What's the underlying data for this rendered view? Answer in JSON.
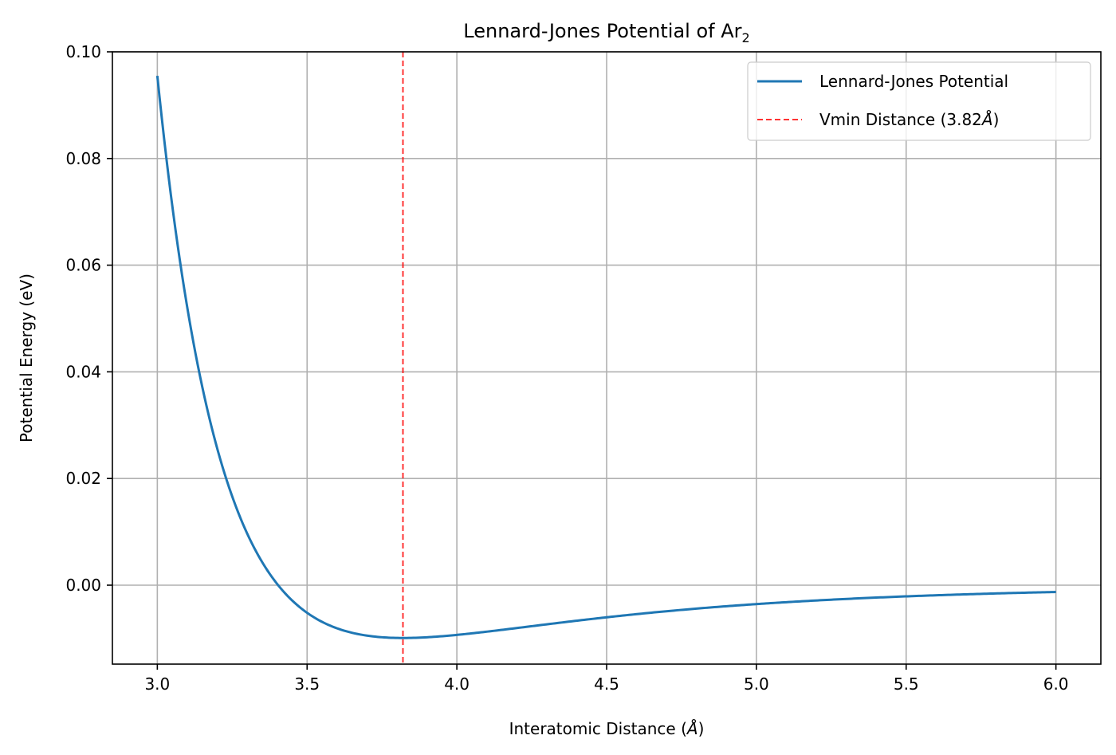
{
  "chart_data": {
    "type": "line",
    "title": "Lennard-Jones Potential of Ar",
    "title_subscript": "2",
    "xlabel": "Interatomic Distance (",
    "xlabel_unit": "Å",
    "xlabel_suffix": ")",
    "ylabel": "Potential Energy (eV)",
    "xlim": [
      2.85,
      6.15
    ],
    "ylim": [
      -0.0148,
      0.1
    ],
    "xticks": [
      3.0,
      3.5,
      4.0,
      4.5,
      5.0,
      5.5,
      6.0
    ],
    "xtick_labels": [
      "3.0",
      "3.5",
      "4.0",
      "4.5",
      "5.0",
      "5.5",
      "6.0"
    ],
    "yticks": [
      0.0,
      0.02,
      0.04,
      0.06,
      0.08,
      0.1
    ],
    "ytick_labels": [
      "0.00",
      "0.02",
      "0.04",
      "0.06",
      "0.08",
      "0.10"
    ],
    "grid": true,
    "legend_position": "top-right",
    "series": [
      {
        "name": "Lennard-Jones Potential",
        "color": "#1f77b4",
        "style": "solid",
        "model": {
          "epsilon": 0.0099,
          "sigma": 3.4033
        },
        "x": [
          3.0,
          3.05,
          3.1,
          3.15,
          3.2,
          3.25,
          3.3,
          3.35,
          3.4,
          3.45,
          3.5,
          3.55,
          3.6,
          3.65,
          3.7,
          3.75,
          3.8,
          3.82,
          3.85,
          3.9,
          4.0,
          4.1,
          4.2,
          4.3,
          4.4,
          4.5,
          4.6,
          4.7,
          4.8,
          4.9,
          5.0,
          5.2,
          5.4,
          5.6,
          5.8,
          6.0
        ],
        "y": [
          0.0949,
          0.0716,
          0.0532,
          0.0387,
          0.0275,
          0.0188,
          0.0121,
          0.007,
          0.0032,
          0.0004,
          -0.0016,
          -0.0032,
          -0.0043,
          -0.0051,
          -0.0057,
          -0.0061,
          -0.0064,
          -0.0099,
          -0.0099,
          -0.0097,
          -0.0094,
          -0.0089,
          -0.0083,
          -0.0077,
          -0.0071,
          -0.0065,
          -0.0059,
          -0.0054,
          -0.005,
          -0.0045,
          -0.0041,
          -0.0034,
          -0.0028,
          -0.0023,
          -0.0019,
          -0.0016
        ]
      },
      {
        "name": "Vmin Distance (3.82",
        "name_unit": "Å",
        "name_suffix": ")",
        "color": "#ff0000",
        "style": "dashed",
        "x_value": 3.82
      }
    ]
  }
}
